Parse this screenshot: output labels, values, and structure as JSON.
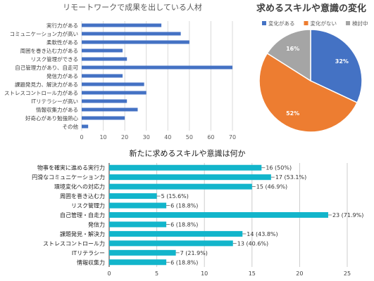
{
  "chart_data": [
    {
      "type": "bar",
      "orientation": "horizontal",
      "title": "リモートワークで成果を出している人材",
      "categories": [
        "実行力がある",
        "コミュニケーション力が高い",
        "柔軟性がある",
        "周囲を巻き込む力がある",
        "リスク管理ができる",
        "自己管理力があり、自走可",
        "発信力がある",
        "課題発見力、解決力がある",
        "ストレスコントロール力がある",
        "ITリテラシーが高い",
        "情報収集力がある",
        "好奇心があり勉強熱心",
        "その他"
      ],
      "values": [
        37,
        46,
        50,
        19,
        21,
        70,
        19,
        29,
        30,
        21,
        26,
        20,
        3
      ],
      "xlim": [
        0,
        70
      ],
      "xticks": [
        0,
        10,
        20,
        30,
        40,
        50,
        60,
        70
      ],
      "grid": true,
      "color": "#4472c4"
    },
    {
      "type": "pie",
      "title": "求めるスキルや意識の変化",
      "categories": [
        "変化がある",
        "変化がない",
        "検討中"
      ],
      "values": [
        32,
        52,
        16
      ],
      "labels": [
        "32%",
        "52%",
        "16%"
      ],
      "colors": [
        "#4472c4",
        "#ed7d31",
        "#a5a5a5"
      ],
      "legend": "top"
    },
    {
      "type": "bar",
      "orientation": "horizontal",
      "title": "新たに求めるスキルや意識は何か",
      "categories": [
        "物事を確実に進める実行力",
        "円滑なコミュニケーション力",
        "環境変化への対応力",
        "周囲を巻き込む力",
        "リスク管理力",
        "自己管理・自走力",
        "発信力",
        "課題発見・解決力",
        "ストレスコントロール力",
        "ITリテラシー",
        "情報収集力"
      ],
      "values": [
        16,
        17,
        15,
        5,
        6,
        23,
        6,
        14,
        13,
        7,
        6
      ],
      "data_labels": [
        "16 (50%)",
        "17 (53.1%)",
        "15 (46.9%)",
        "5 (15.6%)",
        "6 (18.8%)",
        "23 (71.9%)",
        "6 (18.8%)",
        "14 (43.8%)",
        "13 (40.6%)",
        "7 (21.9%)",
        "6 (18.8%)"
      ],
      "xlim": [
        0,
        25
      ],
      "xticks": [
        0,
        5,
        10,
        15,
        20,
        25
      ],
      "grid": true,
      "color": "#12b5cb"
    }
  ]
}
